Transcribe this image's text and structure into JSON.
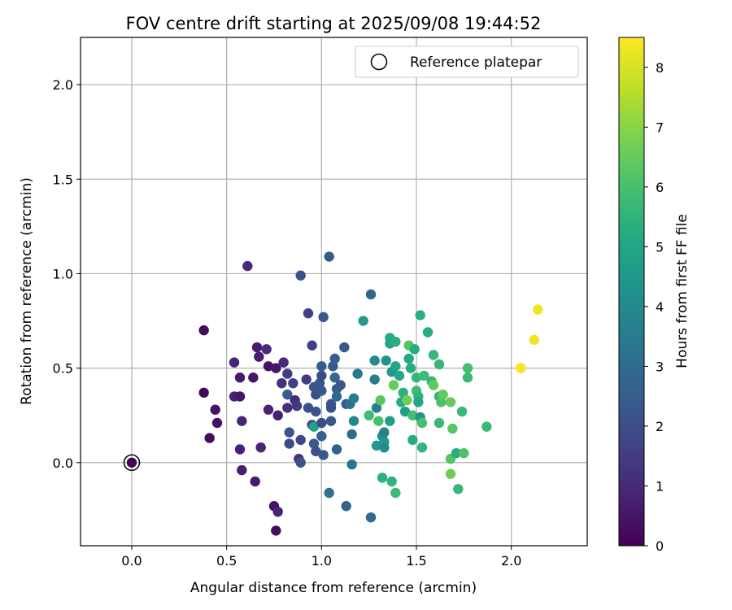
{
  "chart_data": {
    "type": "scatter",
    "title": "FOV centre drift starting at 2025/09/08 19:44:52",
    "xlabel": "Angular distance from reference (arcmin)",
    "ylabel": "Rotation from reference (arcmin)",
    "xlim": [
      -0.27,
      2.4
    ],
    "ylim": [
      -0.44,
      2.25
    ],
    "xticks": [
      "0.0",
      "0.5",
      "1.0",
      "1.5",
      "2.0"
    ],
    "yticks": [
      "0.0",
      "0.5",
      "1.0",
      "1.5",
      "2.0"
    ],
    "grid": true,
    "legend": {
      "position": "top-right",
      "entries": [
        "Reference platepar"
      ]
    },
    "reference_point": {
      "x": 0.0,
      "y": 0.0,
      "label": "Reference platepar"
    },
    "colorbar": {
      "label": "Hours from first FF file",
      "range": [
        0,
        8.5
      ],
      "ticks": [
        "0",
        "1",
        "2",
        "3",
        "4",
        "5",
        "6",
        "7",
        "8"
      ],
      "colormap": "viridis"
    },
    "points": [
      {
        "x": 0.0,
        "y": 0.0,
        "h": 0.0
      },
      {
        "x": 0.38,
        "y": 0.7,
        "h": 0.3
      },
      {
        "x": 0.38,
        "y": 0.37,
        "h": 0.2
      },
      {
        "x": 0.44,
        "y": 0.28,
        "h": 0.4
      },
      {
        "x": 0.45,
        "y": 0.21,
        "h": 0.4
      },
      {
        "x": 0.41,
        "y": 0.13,
        "h": 0.3
      },
      {
        "x": 0.61,
        "y": 1.04,
        "h": 1.0
      },
      {
        "x": 0.54,
        "y": 0.53,
        "h": 0.9
      },
      {
        "x": 0.54,
        "y": 0.35,
        "h": 0.8
      },
      {
        "x": 0.57,
        "y": 0.45,
        "h": 0.6
      },
      {
        "x": 0.57,
        "y": 0.35,
        "h": 0.5
      },
      {
        "x": 0.58,
        "y": 0.22,
        "h": 0.9
      },
      {
        "x": 0.57,
        "y": 0.07,
        "h": 0.8
      },
      {
        "x": 0.58,
        "y": -0.04,
        "h": 0.7
      },
      {
        "x": 0.64,
        "y": 0.45,
        "h": 0.5
      },
      {
        "x": 0.66,
        "y": 0.61,
        "h": 0.6
      },
      {
        "x": 0.67,
        "y": 0.56,
        "h": 0.7
      },
      {
        "x": 0.65,
        "y": -0.1,
        "h": 0.6
      },
      {
        "x": 0.68,
        "y": 0.08,
        "h": 0.9
      },
      {
        "x": 0.71,
        "y": 0.6,
        "h": 1.0
      },
      {
        "x": 0.72,
        "y": 0.51,
        "h": 0.4
      },
      {
        "x": 0.72,
        "y": 0.28,
        "h": 0.8
      },
      {
        "x": 0.75,
        "y": -0.23,
        "h": 0.4
      },
      {
        "x": 0.76,
        "y": -0.36,
        "h": 0.3
      },
      {
        "x": 0.77,
        "y": -0.26,
        "h": 0.8
      },
      {
        "x": 0.76,
        "y": 0.5,
        "h": 0.5
      },
      {
        "x": 0.77,
        "y": 0.25,
        "h": 0.7
      },
      {
        "x": 0.8,
        "y": 0.53,
        "h": 1.1
      },
      {
        "x": 0.79,
        "y": 0.42,
        "h": 1.2
      },
      {
        "x": 0.82,
        "y": 0.47,
        "h": 1.5
      },
      {
        "x": 0.85,
        "y": 0.42,
        "h": 1.6
      },
      {
        "x": 0.82,
        "y": 0.36,
        "h": 2.5
      },
      {
        "x": 0.83,
        "y": 0.16,
        "h": 2.3
      },
      {
        "x": 0.83,
        "y": 0.1,
        "h": 1.9
      },
      {
        "x": 0.82,
        "y": 0.29,
        "h": 1.2
      },
      {
        "x": 0.86,
        "y": 0.33,
        "h": 1.1
      },
      {
        "x": 0.87,
        "y": 0.3,
        "h": 1.4
      },
      {
        "x": 0.88,
        "y": 0.02,
        "h": 1.3
      },
      {
        "x": 0.89,
        "y": 0.12,
        "h": 1.8
      },
      {
        "x": 0.89,
        "y": 0.0,
        "h": 2.1
      },
      {
        "x": 0.89,
        "y": 0.99,
        "h": 2.1
      },
      {
        "x": 0.92,
        "y": 0.44,
        "h": 1.5
      },
      {
        "x": 0.93,
        "y": 0.79,
        "h": 1.6
      },
      {
        "x": 0.95,
        "y": 0.62,
        "h": 1.6
      },
      {
        "x": 0.93,
        "y": 0.29,
        "h": 2.0
      },
      {
        "x": 0.95,
        "y": 0.2,
        "h": 1.7
      },
      {
        "x": 0.96,
        "y": 0.4,
        "h": 2.3
      },
      {
        "x": 0.97,
        "y": 0.36,
        "h": 2.0
      },
      {
        "x": 0.97,
        "y": 0.27,
        "h": 2.2
      },
      {
        "x": 0.96,
        "y": 0.1,
        "h": 2.4
      },
      {
        "x": 0.97,
        "y": 0.06,
        "h": 2.1
      },
      {
        "x": 0.96,
        "y": 0.19,
        "h": 4.8
      },
      {
        "x": 0.99,
        "y": 0.42,
        "h": 2.3
      },
      {
        "x": 1.0,
        "y": 0.51,
        "h": 2.5
      },
      {
        "x": 1.0,
        "y": 0.46,
        "h": 1.9
      },
      {
        "x": 1.0,
        "y": 0.38,
        "h": 2.4
      },
      {
        "x": 1.0,
        "y": 0.21,
        "h": 2.0
      },
      {
        "x": 1.0,
        "y": 0.14,
        "h": 2.6
      },
      {
        "x": 1.01,
        "y": 0.77,
        "h": 2.3
      },
      {
        "x": 1.01,
        "y": 0.04,
        "h": 2.4
      },
      {
        "x": 1.04,
        "y": 1.09,
        "h": 2.4
      },
      {
        "x": 1.05,
        "y": 0.31,
        "h": 2.3
      },
      {
        "x": 1.05,
        "y": 0.29,
        "h": 2.1
      },
      {
        "x": 1.05,
        "y": 0.22,
        "h": 2.3
      },
      {
        "x": 1.06,
        "y": 0.51,
        "h": 2.4
      },
      {
        "x": 1.07,
        "y": 0.55,
        "h": 2.6
      },
      {
        "x": 1.07,
        "y": 0.45,
        "h": 2.8
      },
      {
        "x": 1.08,
        "y": 0.39,
        "h": 2.5
      },
      {
        "x": 1.08,
        "y": 0.35,
        "h": 2.9
      },
      {
        "x": 1.08,
        "y": 0.07,
        "h": 2.6
      },
      {
        "x": 1.04,
        "y": -0.16,
        "h": 3.2
      },
      {
        "x": 1.1,
        "y": 0.41,
        "h": 2.3
      },
      {
        "x": 1.12,
        "y": 0.61,
        "h": 2.3
      },
      {
        "x": 1.13,
        "y": 0.31,
        "h": 2.4
      },
      {
        "x": 1.13,
        "y": -0.23,
        "h": 2.7
      },
      {
        "x": 1.15,
        "y": 0.31,
        "h": 3.2
      },
      {
        "x": 1.16,
        "y": 0.15,
        "h": 3.0
      },
      {
        "x": 1.17,
        "y": 0.34,
        "h": 3.5
      },
      {
        "x": 1.17,
        "y": 0.22,
        "h": 3.9
      },
      {
        "x": 1.16,
        "y": -0.01,
        "h": 3.3
      },
      {
        "x": 1.19,
        "y": 0.47,
        "h": 3.4
      },
      {
        "x": 1.22,
        "y": 0.75,
        "h": 4.6
      },
      {
        "x": 1.25,
        "y": 0.25,
        "h": 5.8
      },
      {
        "x": 1.26,
        "y": 0.89,
        "h": 2.9
      },
      {
        "x": 1.26,
        "y": -0.29,
        "h": 2.9
      },
      {
        "x": 1.28,
        "y": 0.54,
        "h": 4.0
      },
      {
        "x": 1.28,
        "y": 0.44,
        "h": 3.5
      },
      {
        "x": 1.29,
        "y": 0.29,
        "h": 3.6
      },
      {
        "x": 1.29,
        "y": 0.09,
        "h": 4.5
      },
      {
        "x": 1.3,
        "y": 0.22,
        "h": 6.0
      },
      {
        "x": 1.31,
        "y": 0.33,
        "h": 6.3
      },
      {
        "x": 1.32,
        "y": 0.14,
        "h": 4.2
      },
      {
        "x": 1.33,
        "y": 0.16,
        "h": 3.7
      },
      {
        "x": 1.33,
        "y": 0.11,
        "h": 4.5
      },
      {
        "x": 1.33,
        "y": 0.08,
        "h": 4.1
      },
      {
        "x": 1.32,
        "y": -0.08,
        "h": 5.4
      },
      {
        "x": 1.34,
        "y": 0.54,
        "h": 4.3
      },
      {
        "x": 1.36,
        "y": 0.66,
        "h": 5.2
      },
      {
        "x": 1.36,
        "y": 0.63,
        "h": 5.0
      },
      {
        "x": 1.37,
        "y": 0.48,
        "h": 4.6
      },
      {
        "x": 1.36,
        "y": 0.22,
        "h": 4.7
      },
      {
        "x": 1.37,
        "y": -0.1,
        "h": 5.5
      },
      {
        "x": 1.38,
        "y": 0.41,
        "h": 6.5
      },
      {
        "x": 1.39,
        "y": 0.64,
        "h": 5.3
      },
      {
        "x": 1.39,
        "y": 0.51,
        "h": 5.0
      },
      {
        "x": 1.39,
        "y": -0.16,
        "h": 5.8
      },
      {
        "x": 1.41,
        "y": 0.46,
        "h": 5.1
      },
      {
        "x": 1.42,
        "y": 0.32,
        "h": 5.2
      },
      {
        "x": 1.43,
        "y": 0.37,
        "h": 5.4
      },
      {
        "x": 1.44,
        "y": 0.27,
        "h": 4.7
      },
      {
        "x": 1.45,
        "y": 0.33,
        "h": 6.6
      },
      {
        "x": 1.46,
        "y": 0.62,
        "h": 6.2
      },
      {
        "x": 1.46,
        "y": 0.55,
        "h": 5.1
      },
      {
        "x": 1.47,
        "y": 0.5,
        "h": 5.3
      },
      {
        "x": 1.48,
        "y": 0.25,
        "h": 5.9
      },
      {
        "x": 1.48,
        "y": 0.12,
        "h": 5.2
      },
      {
        "x": 1.49,
        "y": 0.6,
        "h": 5.2
      },
      {
        "x": 1.5,
        "y": 0.45,
        "h": 5.6
      },
      {
        "x": 1.5,
        "y": 0.38,
        "h": 5.8
      },
      {
        "x": 1.51,
        "y": 0.35,
        "h": 5.5
      },
      {
        "x": 1.51,
        "y": 0.32,
        "h": 5.1
      },
      {
        "x": 1.52,
        "y": 0.78,
        "h": 5.3
      },
      {
        "x": 1.52,
        "y": 0.24,
        "h": 4.4
      },
      {
        "x": 1.53,
        "y": 0.08,
        "h": 5.5
      },
      {
        "x": 1.53,
        "y": 0.21,
        "h": 6.0
      },
      {
        "x": 1.54,
        "y": 0.46,
        "h": 5.8
      },
      {
        "x": 1.56,
        "y": 0.69,
        "h": 5.2
      },
      {
        "x": 1.58,
        "y": 0.43,
        "h": 5.6
      },
      {
        "x": 1.59,
        "y": 0.41,
        "h": 6.4
      },
      {
        "x": 1.59,
        "y": 0.57,
        "h": 5.6
      },
      {
        "x": 1.62,
        "y": 0.52,
        "h": 5.6
      },
      {
        "x": 1.62,
        "y": 0.35,
        "h": 5.5
      },
      {
        "x": 1.62,
        "y": 0.21,
        "h": 5.7
      },
      {
        "x": 1.63,
        "y": 0.32,
        "h": 6.1
      },
      {
        "x": 1.64,
        "y": 0.36,
        "h": 6.4
      },
      {
        "x": 1.68,
        "y": 0.32,
        "h": 6.5
      },
      {
        "x": 1.68,
        "y": 0.02,
        "h": 6.2
      },
      {
        "x": 1.68,
        "y": -0.06,
        "h": 6.6
      },
      {
        "x": 1.69,
        "y": 0.18,
        "h": 6.3
      },
      {
        "x": 1.71,
        "y": 0.05,
        "h": 5.3
      },
      {
        "x": 1.72,
        "y": -0.14,
        "h": 5.6
      },
      {
        "x": 1.74,
        "y": 0.27,
        "h": 5.7
      },
      {
        "x": 1.75,
        "y": 0.05,
        "h": 6.1
      },
      {
        "x": 1.77,
        "y": 0.5,
        "h": 5.9
      },
      {
        "x": 1.77,
        "y": 0.45,
        "h": 5.7
      },
      {
        "x": 1.87,
        "y": 0.19,
        "h": 5.7
      },
      {
        "x": 2.05,
        "y": 0.5,
        "h": 8.4
      },
      {
        "x": 2.12,
        "y": 0.65,
        "h": 8.3
      },
      {
        "x": 2.14,
        "y": 0.81,
        "h": 8.3
      }
    ]
  }
}
